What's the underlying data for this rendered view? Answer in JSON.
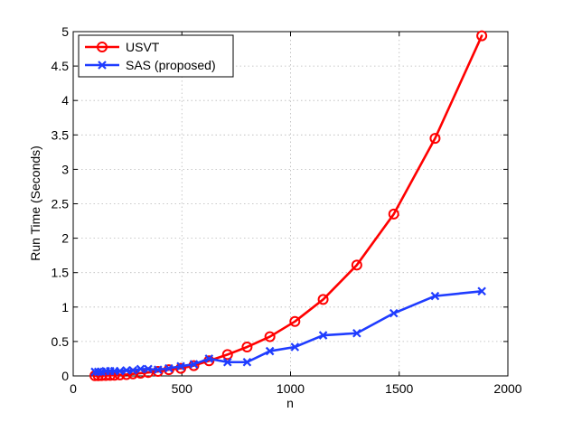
{
  "chart_data": {
    "type": "line",
    "xlabel": "n",
    "ylabel": "Run Time (Seconds)",
    "xlim": [
      0,
      2000
    ],
    "ylim": [
      0,
      5
    ],
    "xticks": [
      0,
      500,
      1000,
      1500,
      2000
    ],
    "yticks": [
      0,
      0.5,
      1,
      1.5,
      2,
      2.5,
      3,
      3.5,
      4,
      4.5,
      5
    ],
    "xtick_labels": [
      "0",
      "500",
      "1000",
      "1500",
      "2000"
    ],
    "ytick_labels": [
      "0",
      "0.5",
      "1",
      "1.5",
      "2",
      "2.5",
      "3",
      "3.5",
      "4",
      "4.5",
      "5"
    ],
    "grid": true,
    "legend_position": "top-left",
    "series": [
      {
        "name": "USVT",
        "color": "#ff0000",
        "marker": "circle",
        "points": [
          {
            "x": 100,
            "y": 0.003
          },
          {
            "x": 115,
            "y": 0.004
          },
          {
            "x": 130,
            "y": 0.005
          },
          {
            "x": 150,
            "y": 0.006
          },
          {
            "x": 170,
            "y": 0.008
          },
          {
            "x": 190,
            "y": 0.01
          },
          {
            "x": 215,
            "y": 0.015
          },
          {
            "x": 245,
            "y": 0.02
          },
          {
            "x": 275,
            "y": 0.03
          },
          {
            "x": 310,
            "y": 0.04
          },
          {
            "x": 345,
            "y": 0.05
          },
          {
            "x": 390,
            "y": 0.065
          },
          {
            "x": 440,
            "y": 0.09
          },
          {
            "x": 495,
            "y": 0.11
          },
          {
            "x": 555,
            "y": 0.15
          },
          {
            "x": 625,
            "y": 0.22
          },
          {
            "x": 710,
            "y": 0.31
          },
          {
            "x": 800,
            "y": 0.42
          },
          {
            "x": 905,
            "y": 0.57
          },
          {
            "x": 1020,
            "y": 0.79
          },
          {
            "x": 1150,
            "y": 1.11
          },
          {
            "x": 1305,
            "y": 1.61
          },
          {
            "x": 1475,
            "y": 2.35
          },
          {
            "x": 1665,
            "y": 3.45
          },
          {
            "x": 1880,
            "y": 4.94
          }
        ]
      },
      {
        "name": "SAS (proposed)",
        "color": "#1f3cff",
        "marker": "x",
        "points": [
          {
            "x": 100,
            "y": 0.06
          },
          {
            "x": 115,
            "y": 0.06
          },
          {
            "x": 130,
            "y": 0.06
          },
          {
            "x": 150,
            "y": 0.07
          },
          {
            "x": 170,
            "y": 0.07
          },
          {
            "x": 190,
            "y": 0.07
          },
          {
            "x": 215,
            "y": 0.07
          },
          {
            "x": 245,
            "y": 0.08
          },
          {
            "x": 275,
            "y": 0.08
          },
          {
            "x": 310,
            "y": 0.1
          },
          {
            "x": 345,
            "y": 0.1
          },
          {
            "x": 390,
            "y": 0.09
          },
          {
            "x": 440,
            "y": 0.11
          },
          {
            "x": 495,
            "y": 0.14
          },
          {
            "x": 555,
            "y": 0.17
          },
          {
            "x": 625,
            "y": 0.25
          },
          {
            "x": 710,
            "y": 0.2
          },
          {
            "x": 800,
            "y": 0.2
          },
          {
            "x": 905,
            "y": 0.36
          },
          {
            "x": 1020,
            "y": 0.42
          },
          {
            "x": 1150,
            "y": 0.59
          },
          {
            "x": 1305,
            "y": 0.62
          },
          {
            "x": 1475,
            "y": 0.91
          },
          {
            "x": 1665,
            "y": 1.16
          },
          {
            "x": 1880,
            "y": 1.23
          }
        ]
      }
    ]
  }
}
